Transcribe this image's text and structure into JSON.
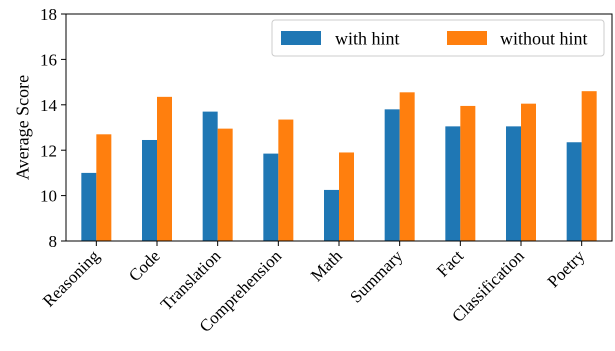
{
  "chart_data": {
    "type": "bar",
    "title": "",
    "xlabel": "",
    "ylabel": "Average Score",
    "ylim": [
      8,
      18
    ],
    "yticks": [
      8,
      10,
      12,
      14,
      16,
      18
    ],
    "categories": [
      "Reasoning",
      "Code",
      "Translation",
      "Comprehension",
      "Math",
      "Summary",
      "Fact",
      "Classification",
      "Poetry"
    ],
    "series": [
      {
        "name": "with hint",
        "color": "#1f77b4",
        "values": [
          11.0,
          12.45,
          13.7,
          11.85,
          10.25,
          13.8,
          13.05,
          13.05,
          12.35
        ]
      },
      {
        "name": "without hint",
        "color": "#ff7f0e",
        "values": [
          12.7,
          14.35,
          12.95,
          13.35,
          11.9,
          14.55,
          13.95,
          14.05,
          14.6
        ]
      }
    ],
    "grid": false,
    "legend": "top-right"
  }
}
